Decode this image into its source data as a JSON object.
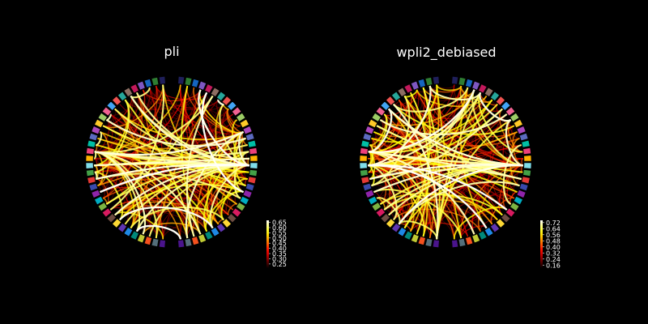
{
  "chart_data": [
    {
      "type": "connectivity-circle",
      "title": "pli",
      "n_nodes": 68,
      "colormap": "hot",
      "background": "#000000",
      "node_edgecolor": "#000000",
      "vmin": 0.21,
      "vmax": 0.67,
      "colorbar": {
        "ticks": [
          "0.65",
          "0.60",
          "0.55",
          "0.50",
          "0.45",
          "0.40",
          "0.35",
          "0.30",
          "0.25"
        ],
        "placement": "bottom-right"
      },
      "hub_nodes": [
        17,
        50,
        52,
        12
      ],
      "n_edges": 300,
      "strong_edges": [
        [
          17,
          44
        ],
        [
          17,
          42
        ],
        [
          17,
          46
        ],
        [
          17,
          40
        ],
        [
          17,
          48
        ],
        [
          17,
          38
        ],
        [
          17,
          59
        ],
        [
          17,
          3
        ],
        [
          17,
          52
        ],
        [
          17,
          50
        ],
        [
          17,
          56
        ],
        [
          17,
          62
        ],
        [
          17,
          28
        ],
        [
          50,
          14
        ],
        [
          12,
          52
        ],
        [
          52,
          30
        ],
        [
          17,
          36
        ]
      ]
    },
    {
      "type": "connectivity-circle",
      "title": "wpli2_debiased",
      "n_nodes": 68,
      "colormap": "hot",
      "background": "#000000",
      "node_edgecolor": "#000000",
      "vmin": 0.12,
      "vmax": 0.75,
      "colorbar": {
        "ticks": [
          "0.72",
          "0.64",
          "0.56",
          "0.48",
          "0.40",
          "0.32",
          "0.24",
          "0.16"
        ],
        "placement": "bottom-right"
      },
      "hub_nodes": [
        17,
        52,
        50
      ],
      "n_edges": 300,
      "strong_edges": [
        [
          17,
          44
        ],
        [
          17,
          46
        ],
        [
          17,
          42
        ],
        [
          17,
          3
        ],
        [
          17,
          48
        ],
        [
          17,
          52
        ],
        [
          17,
          59
        ],
        [
          17,
          40
        ],
        [
          52,
          30
        ],
        [
          17,
          56
        ]
      ]
    }
  ],
  "node_colors": [
    "#1f1f5a",
    "#2e7d32",
    "#1565c0",
    "#7e57c2",
    "#c2185b",
    "#8d6e63",
    "#26a69a",
    "#ef5350",
    "#42a5f5",
    "#f06292",
    "#9ccc65",
    "#ffca28",
    "#ab47bc",
    "#5c6bc0",
    "#00bfa5",
    "#ec407a",
    "#ffb300",
    "#80deea",
    "#43a047",
    "#e53935",
    "#3949ab",
    "#8e24aa",
    "#00acc1",
    "#7cb342",
    "#d81b60",
    "#6d4c41",
    "#fdd835",
    "#5e35b1",
    "#1e88e5",
    "#00897b",
    "#c0ca33",
    "#f4511e",
    "#546e7a",
    "#4a148c"
  ]
}
